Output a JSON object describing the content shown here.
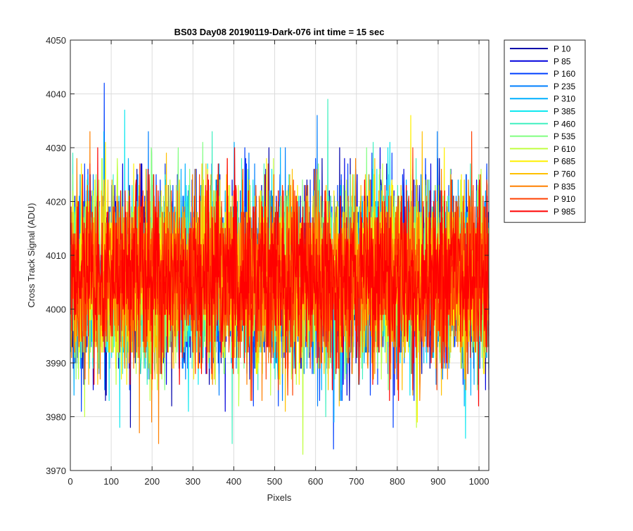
{
  "chart_data": {
    "type": "line",
    "title": "BS03 Day08 20190119-Dark-076 int time = 15 sec",
    "xlabel": "Pixels",
    "ylabel": "Cross Track Signal (ADU)",
    "xlim": [
      0,
      1024
    ],
    "ylim": [
      3970,
      4050
    ],
    "xticks": [
      0,
      100,
      200,
      300,
      400,
      500,
      600,
      700,
      800,
      900,
      1000
    ],
    "yticks": [
      3970,
      3980,
      3990,
      4000,
      4010,
      4020,
      4030,
      4040,
      4050
    ],
    "grid": true,
    "legend_position": "outside-right",
    "noise_model": {
      "n_points_per_series": 1024,
      "mean": 4006,
      "std": 8
    },
    "series": [
      {
        "name": "P 10",
        "color": "#0000AA"
      },
      {
        "name": "P 85",
        "color": "#0000DD"
      },
      {
        "name": "P 160",
        "color": "#0040FF"
      },
      {
        "name": "P 235",
        "color": "#0080FF"
      },
      {
        "name": "P 310",
        "color": "#00B0FF"
      },
      {
        "name": "P 385",
        "color": "#10E8F0"
      },
      {
        "name": "P 460",
        "color": "#40F0C0"
      },
      {
        "name": "P 535",
        "color": "#80FF80"
      },
      {
        "name": "P 610",
        "color": "#C0FF40"
      },
      {
        "name": "P 685",
        "color": "#FFF000"
      },
      {
        "name": "P 760",
        "color": "#FFC000"
      },
      {
        "name": "P 835",
        "color": "#FF8000"
      },
      {
        "name": "P 910",
        "color": "#FF4000"
      },
      {
        "name": "P 985",
        "color": "#FF0000"
      }
    ]
  }
}
